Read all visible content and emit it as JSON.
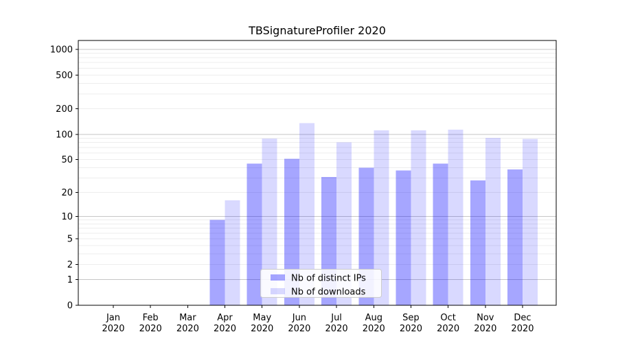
{
  "chart_data": {
    "type": "bar",
    "title": "TBSignatureProfiler 2020",
    "categories": [
      "Jan\n2020",
      "Feb\n2020",
      "Mar\n2020",
      "Apr\n2020",
      "May\n2020",
      "Jun\n2020",
      "Jul\n2020",
      "Aug\n2020",
      "Sep\n2020",
      "Oct\n2020",
      "Nov\n2020",
      "Dec\n2020"
    ],
    "series": [
      {
        "name": "Nb of distinct IPs",
        "color": "#0000ff",
        "opacity": 0.35,
        "hex_on_white": "#a6a6ff",
        "values": [
          null,
          null,
          null,
          9,
          45,
          51,
          31,
          40,
          37,
          45,
          28,
          38
        ]
      },
      {
        "name": "Nb of downloads",
        "color": "#0000ff",
        "opacity": 0.15,
        "hex_on_white": "#d9d9ff",
        "values": [
          null,
          null,
          null,
          16,
          89,
          135,
          80,
          111,
          111,
          114,
          91,
          88
        ]
      }
    ],
    "xlabel": "",
    "ylabel": "",
    "yscale": "log1p",
    "yticks": [
      0,
      1,
      2,
      5,
      10,
      20,
      50,
      100,
      200,
      500,
      1000
    ],
    "ylim": [
      0,
      1270
    ],
    "grid": true,
    "legend": {
      "labels": [
        "Nb of distinct IPs",
        "Nb of downloads"
      ],
      "position": "lower-center"
    },
    "colors": {
      "background": "#ffffff",
      "grid_minor": "#ededed",
      "grid_major": "#c6c6c6",
      "axis": "#000000",
      "text": "#000000",
      "legend_border": "#cccccc",
      "legend_background": "#ffffff"
    }
  }
}
